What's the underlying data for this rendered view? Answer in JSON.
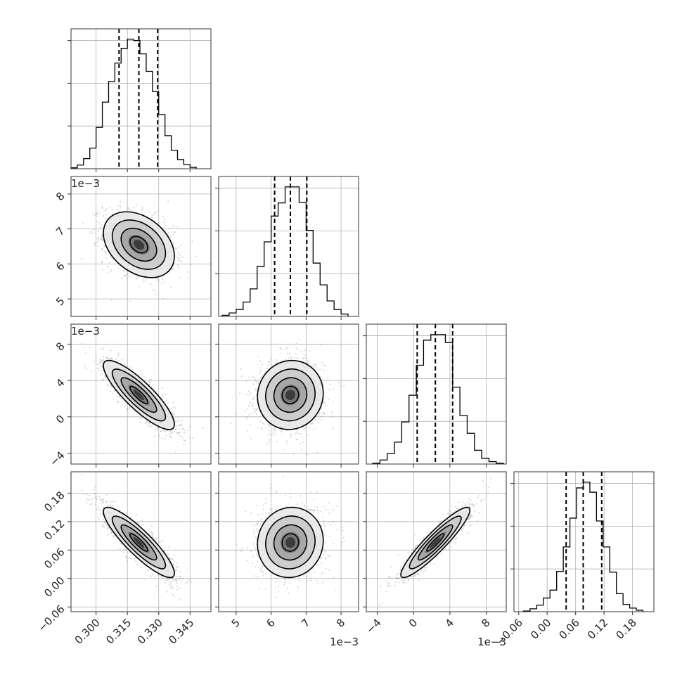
{
  "chart_data": {
    "type": "scatter",
    "plot_kind": "corner",
    "title": "",
    "colors": {
      "points": "#7f7f7f",
      "lines": "#000000",
      "grid": "#b0b0b0"
    },
    "grid": true,
    "parameters": [
      {
        "index": 0,
        "range": [
          0.288,
          0.355
        ],
        "ticks": [
          0.3,
          0.315,
          0.33,
          0.345
        ],
        "tick_labels": [
          "0.300",
          "0.315",
          "0.330",
          "0.345"
        ],
        "offset_label": "",
        "mean": 0.3205,
        "sigma": 0.0085,
        "quantiles": [
          0.311,
          0.3205,
          0.3295
        ]
      },
      {
        "index": 1,
        "range": [
          4.5,
          8.5
        ],
        "ticks": [
          5,
          6,
          7,
          8
        ],
        "tick_labels": [
          "5",
          "6",
          "7",
          "8"
        ],
        "offset_label": "1e−3",
        "mean": 6.55,
        "sigma": 0.47,
        "quantiles": [
          6.1,
          6.55,
          7.02
        ]
      },
      {
        "index": 2,
        "range": [
          -5.2,
          10.2
        ],
        "ticks": [
          -4,
          0,
          4,
          8
        ],
        "tick_labels": [
          "−4",
          "0",
          "4",
          "8"
        ],
        "offset_label": "1e−3",
        "mean": 2.4,
        "sigma": 1.9,
        "quantiles": [
          0.4,
          2.4,
          4.3
        ]
      },
      {
        "index": 3,
        "range": [
          -0.07,
          0.225
        ],
        "ticks": [
          -0.06,
          0.0,
          0.06,
          0.12,
          0.18
        ],
        "tick_labels": [
          "−0.06",
          "0.00",
          "0.06",
          "0.12",
          "0.18"
        ],
        "offset_label": "",
        "mean": 0.076,
        "sigma": 0.037,
        "quantiles": [
          0.04,
          0.076,
          0.115
        ]
      }
    ],
    "histograms": [
      {
        "param": 0,
        "bins": [
          0.288,
          0.291,
          0.294,
          0.297,
          0.3,
          0.303,
          0.306,
          0.309,
          0.312,
          0.315,
          0.318,
          0.321,
          0.324,
          0.327,
          0.33,
          0.333,
          0.336,
          0.339,
          0.342,
          0.345,
          0.348
        ],
        "counts": [
          2,
          8,
          22,
          45,
          90,
          145,
          190,
          230,
          262,
          282,
          279,
          250,
          212,
          168,
          118,
          72,
          40,
          20,
          9,
          3
        ]
      },
      {
        "param": 1,
        "bins": [
          4.6,
          4.8,
          5.0,
          5.2,
          5.4,
          5.6,
          5.8,
          6.0,
          6.2,
          6.4,
          6.6,
          6.8,
          7.0,
          7.2,
          7.4,
          7.6,
          7.8,
          8.0,
          8.2
        ],
        "counts": [
          2,
          6,
          12,
          25,
          48,
          87,
          130,
          175,
          198,
          226,
          226,
          199,
          150,
          93,
          55,
          27,
          12,
          4
        ]
      },
      {
        "param": 2,
        "bins": [
          -4.5,
          -3.7,
          -2.9,
          -2.1,
          -1.3,
          -0.5,
          0.3,
          1.1,
          1.9,
          2.7,
          3.5,
          4.3,
          5.1,
          5.9,
          6.7,
          7.5,
          8.3,
          9.1,
          9.9
        ],
        "counts": [
          1,
          5,
          13,
          27,
          52,
          85,
          122,
          153,
          160,
          160,
          150,
          95,
          60,
          38,
          17,
          7,
          3,
          1
        ]
      },
      {
        "param": 3,
        "bins": [
          -0.05,
          -0.036,
          -0.022,
          -0.008,
          0.006,
          0.02,
          0.034,
          0.048,
          0.062,
          0.076,
          0.09,
          0.104,
          0.118,
          0.132,
          0.146,
          0.16,
          0.174,
          0.188,
          0.202
        ],
        "counts": [
          1,
          4,
          9,
          19,
          30,
          56,
          90,
          130,
          172,
          180,
          166,
          126,
          90,
          55,
          25,
          10,
          5,
          2
        ]
      }
    ],
    "pairs": [
      {
        "x": 0,
        "y": 1,
        "correlation": -0.35
      },
      {
        "x": 0,
        "y": 2,
        "correlation": -0.85
      },
      {
        "x": 1,
        "y": 2,
        "correlation": 0.05
      },
      {
        "x": 0,
        "y": 3,
        "correlation": -0.88
      },
      {
        "x": 1,
        "y": 3,
        "correlation": 0.05
      },
      {
        "x": 2,
        "y": 3,
        "correlation": 0.92
      }
    ],
    "contour_levels_sigma": [
      0.5,
      1.0,
      1.5,
      2.0
    ]
  }
}
